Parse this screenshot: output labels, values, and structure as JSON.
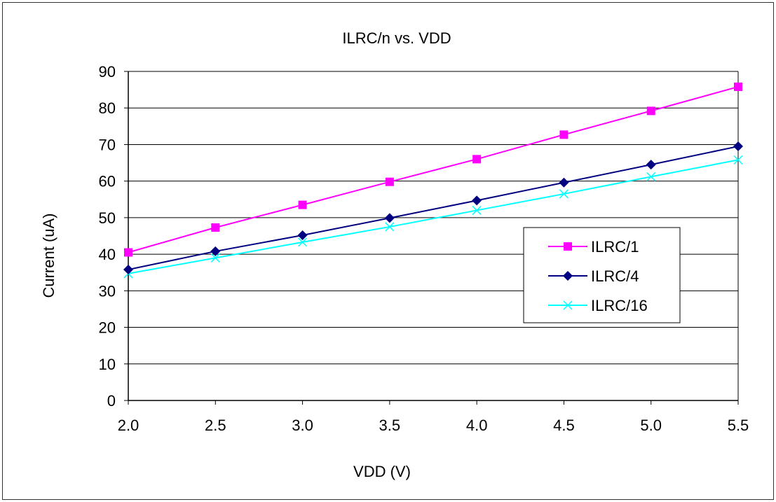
{
  "chart_data": {
    "type": "line",
    "title": "ILRC/n vs. VDD",
    "xlabel": "VDD (V)",
    "ylabel": "Current (uA)",
    "x": [
      2.0,
      2.5,
      3.0,
      3.5,
      4.0,
      4.5,
      5.0,
      5.5
    ],
    "x_tick_labels": [
      "2.0",
      "2.5",
      "3.0",
      "3.5",
      "4.0",
      "4.5",
      "5.0",
      "5.5"
    ],
    "xlim": [
      2.0,
      5.5
    ],
    "ylim": [
      0,
      90
    ],
    "y_ticks": [
      0,
      10,
      20,
      30,
      40,
      50,
      60,
      70,
      80,
      90
    ],
    "y_tick_labels": [
      "0",
      "10",
      "20",
      "30",
      "40",
      "50",
      "60",
      "70",
      "80",
      "90"
    ],
    "grid": "horizontal",
    "legend_position": "right",
    "series": [
      {
        "name": "ILRC/1",
        "color": "#ff00ff",
        "marker": "square",
        "values": [
          40.5,
          47.3,
          53.5,
          59.8,
          66.0,
          72.7,
          79.2,
          85.8
        ]
      },
      {
        "name": "ILRC/4",
        "color": "#000080",
        "marker": "diamond",
        "values": [
          35.8,
          40.8,
          45.2,
          49.9,
          54.7,
          59.6,
          64.5,
          69.5
        ]
      },
      {
        "name": "ILRC/16",
        "color": "#00ffff",
        "marker": "x",
        "values": [
          34.7,
          39.0,
          43.3,
          47.5,
          52.0,
          56.5,
          61.2,
          65.8
        ]
      }
    ]
  }
}
